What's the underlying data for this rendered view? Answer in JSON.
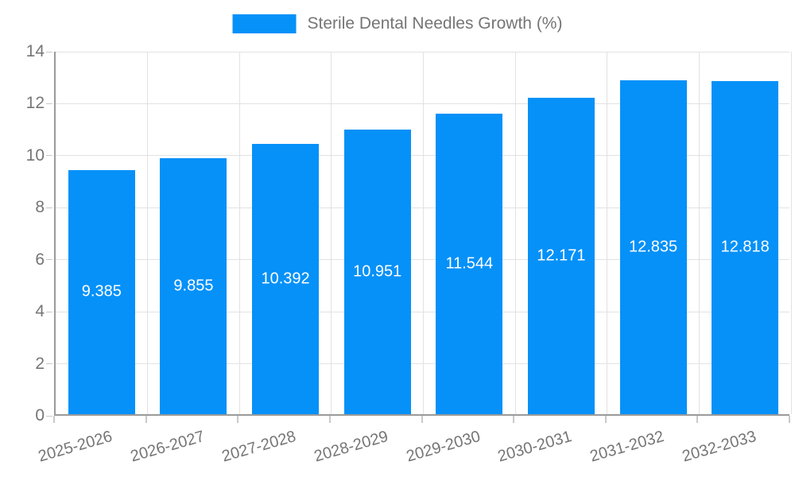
{
  "chart_data": {
    "type": "bar",
    "title": "",
    "legend": {
      "label": "Sterile Dental Needles Growth (%)",
      "position": "top"
    },
    "categories": [
      "2025-2026",
      "2026-2027",
      "2027-2028",
      "2028-2029",
      "2029-2030",
      "2030-2031",
      "2031-2032",
      "2032-2033"
    ],
    "values": [
      9.385,
      9.855,
      10.392,
      10.951,
      11.544,
      12.171,
      12.835,
      12.818
    ],
    "value_labels": [
      "9.385",
      "9.855",
      "10.392",
      "10.951",
      "11.544",
      "12.171",
      "12.835",
      "12.818"
    ],
    "xlabel": "",
    "ylabel": "",
    "ylim": [
      0,
      14
    ],
    "yticks": [
      0,
      2,
      4,
      6,
      8,
      10,
      12,
      14
    ],
    "grid": true,
    "colors": {
      "bar": "#0591f8",
      "value_text": "#ffffff",
      "axis_line": "#9a9a9a",
      "grid_line": "#e2e2e2",
      "tick_text": "#757575",
      "legend_text": "#757575"
    }
  }
}
